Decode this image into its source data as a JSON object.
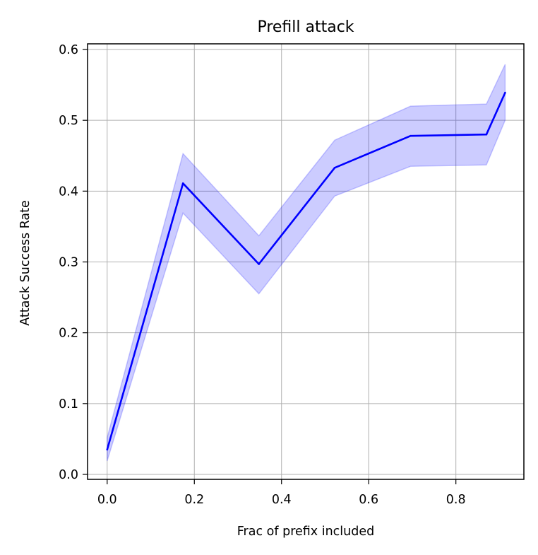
{
  "chart_data": {
    "type": "line",
    "title": "Prefill attack",
    "xlabel": "Frac of prefix included",
    "ylabel": "Attack Success Rate",
    "xlim": [
      -0.045,
      0.956
    ],
    "ylim": [
      -0.007,
      0.608
    ],
    "xticks": [
      0.0,
      0.2,
      0.4,
      0.6,
      0.8
    ],
    "xtick_labels": [
      "0.0",
      "0.2",
      "0.4",
      "0.6",
      "0.8"
    ],
    "yticks": [
      0.0,
      0.1,
      0.2,
      0.3,
      0.4,
      0.5,
      0.6
    ],
    "ytick_labels": [
      "0.0",
      "0.1",
      "0.2",
      "0.3",
      "0.4",
      "0.5",
      "0.6"
    ],
    "grid": true,
    "series": [
      {
        "x": [
          0.0,
          0.174,
          0.348,
          0.522,
          0.696,
          0.87,
          0.913
        ],
        "values": [
          0.035,
          0.411,
          0.297,
          0.433,
          0.478,
          0.48,
          0.539
        ],
        "lower": [
          0.019,
          0.369,
          0.255,
          0.393,
          0.435,
          0.437,
          0.5
        ],
        "upper": [
          0.052,
          0.453,
          0.337,
          0.472,
          0.52,
          0.523,
          0.579
        ],
        "color": "#0000ff",
        "band_color": "#0000ff"
      }
    ]
  }
}
